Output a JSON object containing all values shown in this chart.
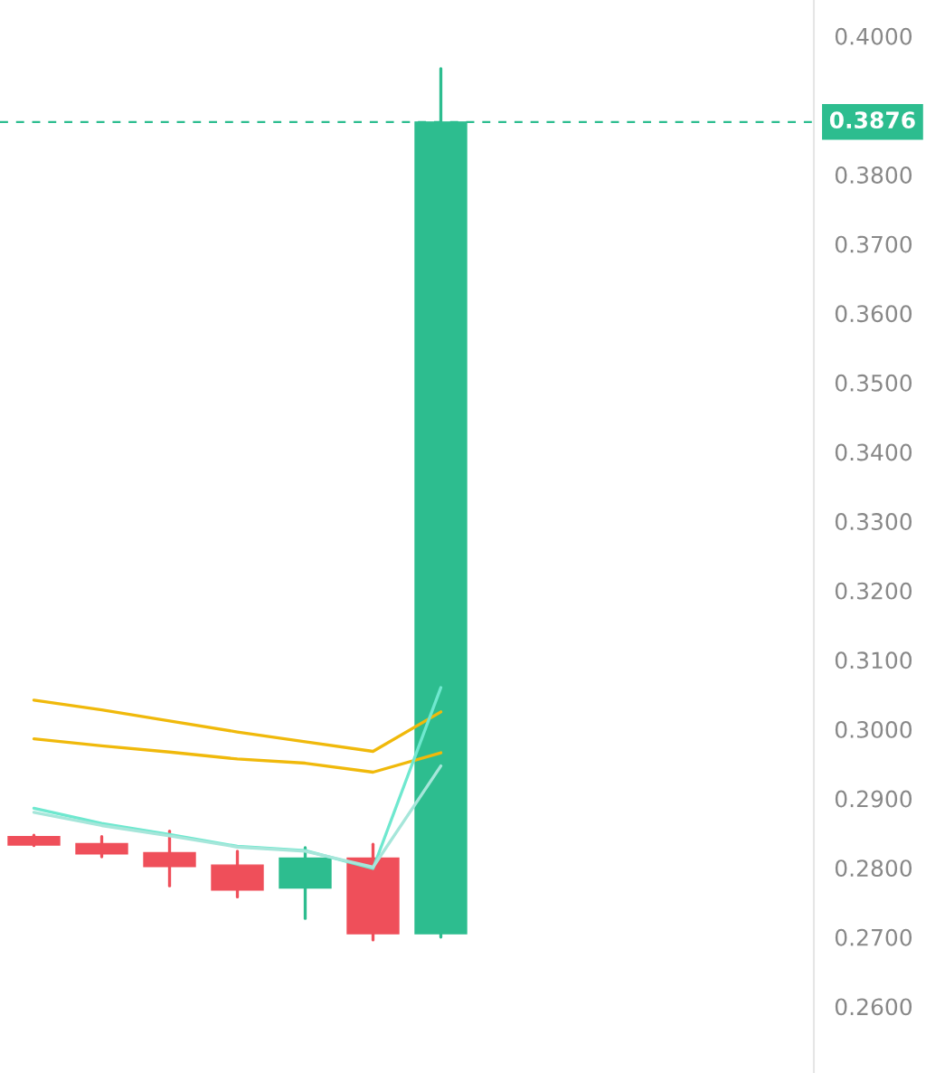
{
  "chart_data": {
    "type": "candlestick",
    "categories": [
      null,
      null,
      null,
      null,
      null,
      null,
      null,
      null,
      null,
      null,
      null,
      null
    ],
    "ohlc": [
      [
        0.2845,
        0.2847,
        0.2832,
        0.2833
      ],
      [
        0.2835,
        0.2845,
        0.2816,
        0.282
      ],
      [
        0.2822,
        0.2853,
        0.2774,
        0.2802
      ],
      [
        0.2804,
        0.2824,
        0.2758,
        0.2768
      ],
      [
        0.2771,
        0.2829,
        0.2727,
        0.2814
      ],
      [
        0.2814,
        0.2834,
        0.2696,
        0.2705
      ],
      [
        0.2705,
        0.3953,
        0.27,
        0.3876
      ],
      null,
      null,
      null,
      null,
      null
    ],
    "colors": [
      "#ef4f5a",
      "#ef4f5a",
      "#ef4f5a",
      "#ef4f5a",
      "#2dbd8f",
      "#ef4f5a",
      "#2dbd8f",
      null,
      null,
      null,
      null,
      null
    ],
    "series": [
      {
        "type": "line",
        "color": "#f0b90b",
        "values": [
          0.3042,
          0.3028,
          0.3012,
          0.2996,
          0.2982,
          0.2968,
          0.3025,
          null,
          null,
          null,
          null,
          null
        ]
      },
      {
        "type": "line",
        "color": "#f0b90b",
        "values": [
          0.2986,
          0.2976,
          0.2967,
          0.2957,
          0.2951,
          0.2938,
          0.2966,
          null,
          null,
          null,
          null,
          null
        ]
      },
      {
        "type": "line",
        "color": "#6fe8cf",
        "values": [
          0.2886,
          0.2864,
          0.2848,
          0.2831,
          0.2825,
          0.2799,
          0.306,
          null,
          null,
          null,
          null,
          null
        ]
      },
      {
        "type": "line",
        "color": "#a6e6da",
        "values": [
          0.288,
          0.2861,
          0.2846,
          0.283,
          0.2824,
          0.2801,
          0.2947,
          null,
          null,
          null,
          null,
          null
        ]
      }
    ],
    "ylim": [
      0.2504,
      0.4052
    ],
    "yticks": [
      {
        "value": 0.26,
        "label": "0.2600"
      },
      {
        "value": 0.27,
        "label": "0.2700"
      },
      {
        "value": 0.28,
        "label": "0.2800"
      },
      {
        "value": 0.29,
        "label": "0.2900"
      },
      {
        "value": 0.3,
        "label": "0.3000"
      },
      {
        "value": 0.31,
        "label": "0.3100"
      },
      {
        "value": 0.32,
        "label": "0.3200"
      },
      {
        "value": 0.33,
        "label": "0.3300"
      },
      {
        "value": 0.34,
        "label": "0.3400"
      },
      {
        "value": 0.35,
        "label": "0.3500"
      },
      {
        "value": 0.36,
        "label": "0.3600"
      },
      {
        "value": 0.37,
        "label": "0.3700"
      },
      {
        "value": 0.38,
        "label": "0.3800"
      },
      {
        "value": 0.4,
        "label": "0.4000"
      }
    ],
    "ref_lines": [
      {
        "axis": "y",
        "value": 0.3876,
        "label": "0.3876",
        "color": "#2dbd8f",
        "line_style": "dashed"
      }
    ],
    "grid": false,
    "tick_labels": "y"
  }
}
